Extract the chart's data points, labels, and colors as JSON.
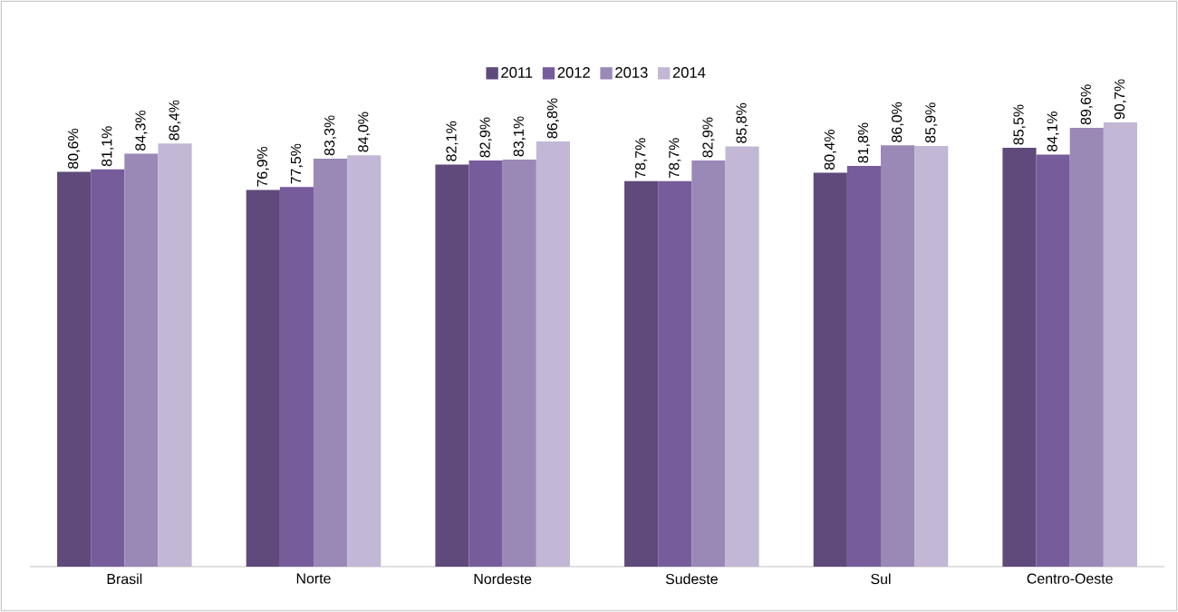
{
  "chart_data": {
    "type": "bar",
    "categories": [
      "Brasil",
      "Norte",
      "Nordeste",
      "Sudeste",
      "Sul",
      "Centro-Oeste"
    ],
    "series": [
      {
        "name": "2011",
        "color": "#5f4a7b",
        "values": [
          80.6,
          76.9,
          82.1,
          78.7,
          80.4,
          85.5
        ],
        "value_labels": [
          "80,6%",
          "76,9%",
          "82,1%",
          "78,7%",
          "80,4%",
          "85,5%"
        ]
      },
      {
        "name": "2012",
        "color": "#775c9c",
        "values": [
          81.1,
          77.5,
          82.9,
          78.7,
          81.8,
          84.1
        ],
        "value_labels": [
          "81,1%",
          "77,5%",
          "82,9%",
          "78,7%",
          "81,8%",
          "84,1%"
        ]
      },
      {
        "name": "2013",
        "color": "#9a88b6",
        "values": [
          84.3,
          83.3,
          83.1,
          82.9,
          86.0,
          89.6
        ],
        "value_labels": [
          "84,3%",
          "83,3%",
          "83,1%",
          "82,9%",
          "86,0%",
          "89,6%"
        ]
      },
      {
        "name": "2014",
        "color": "#c2b7d4",
        "values": [
          86.4,
          84.0,
          86.8,
          85.8,
          85.9,
          90.7
        ],
        "value_labels": [
          "86,4%",
          "84,0%",
          "86,8%",
          "85,8%",
          "85,9%",
          "90,7%"
        ]
      }
    ],
    "legend": "top"
  }
}
